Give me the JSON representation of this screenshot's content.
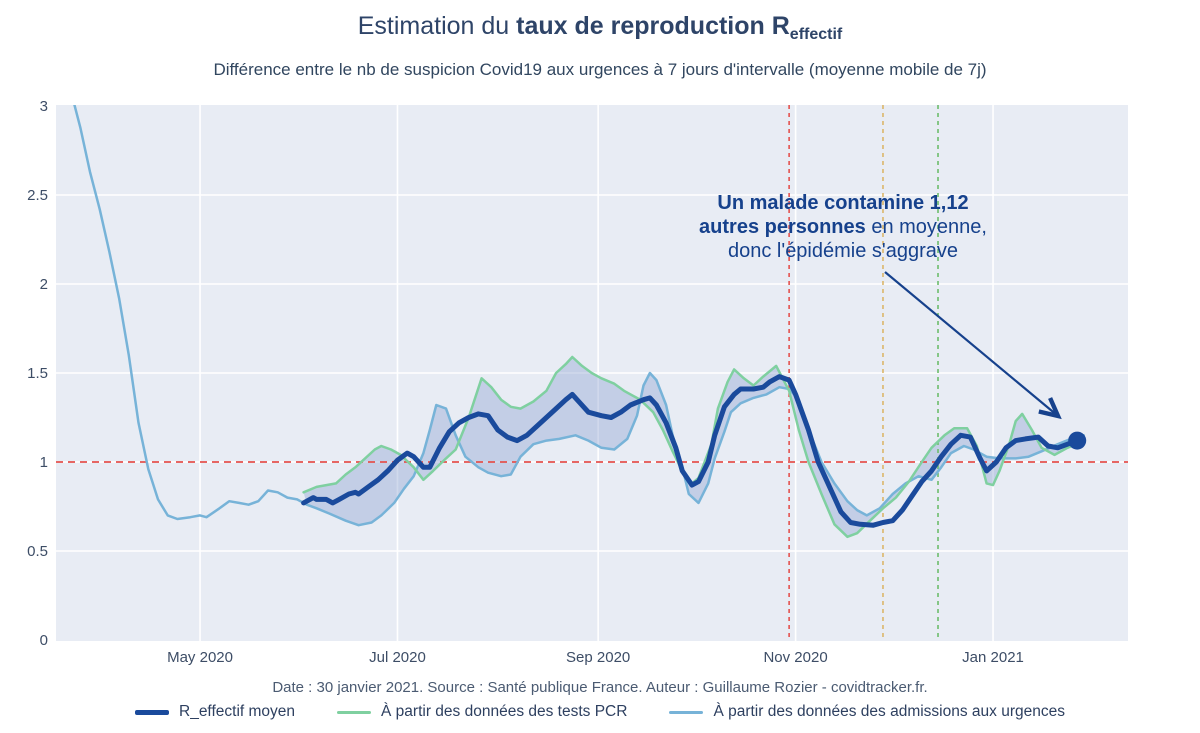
{
  "title": {
    "prefix": "Estimation du ",
    "bold": "taux de reproduction R",
    "sub": "effectif"
  },
  "subtitle": "Différence entre le nb de suspicion Covid19 aux urgences à 7 jours d'intervalle (moyenne mobile de 7j)",
  "annotation": {
    "line1": "Un malade contamine 1,12",
    "line2_bold": "autres personnes",
    "line2_rest": " en moyenne,",
    "line3": "donc l'épidémie s'aggrave"
  },
  "footer": "Date : 30 janvier 2021. Source : Santé publique France. Auteur : Guillaume Rozier - covidtracker.fr.",
  "legend": [
    {
      "label": "R_effectif moyen",
      "color": "#1a4a9c",
      "thick": 5
    },
    {
      "label": "À partir des données des tests PCR",
      "color": "#7fd0a0",
      "thick": 3
    },
    {
      "label": "À partir des données des admissions aux urgences",
      "color": "#77b3d8",
      "thick": 3
    }
  ],
  "colors": {
    "accent_navy": "#16418c",
    "threshold_red": "#e4524e",
    "event_orange": "#dcb66a",
    "event_green": "#6cbc6c",
    "plot_background": "#e8ecf4",
    "gridline": "#ffffff"
  },
  "chart_data": {
    "type": "line",
    "x_unit": "days since 2020-03-01",
    "ylim": [
      0,
      3
    ],
    "grid": true,
    "legend_position": "bottom",
    "plot_bg": "#e8ecf4",
    "band_color": "rgba(151,170,212,0.45)",
    "latest_value_label": "1,12",
    "y_ticks": [
      {
        "v": 0,
        "label": "0"
      },
      {
        "v": 0.5,
        "label": "0.5"
      },
      {
        "v": 1,
        "label": "1"
      },
      {
        "v": 1.5,
        "label": "1.5"
      },
      {
        "v": 2,
        "label": "2"
      },
      {
        "v": 2.5,
        "label": "2.5"
      },
      {
        "v": 3,
        "label": "3"
      }
    ],
    "x_ticks": [
      {
        "day": 61,
        "label": "May 2020"
      },
      {
        "day": 122,
        "label": "Jul 2020"
      },
      {
        "day": 184,
        "label": "Sep 2020"
      },
      {
        "day": 245,
        "label": "Nov 2020"
      },
      {
        "day": 306,
        "label": "Jan 2021"
      }
    ],
    "hline": {
      "value": 1,
      "color": "#e4524e"
    },
    "vlines": [
      {
        "day": 243,
        "color": "#e4524e"
      },
      {
        "day": 272,
        "color": "#dcb66a"
      },
      {
        "day": 289,
        "color": "#6cbc6c"
      }
    ],
    "series": [
      {
        "name": "R_effectif moyen",
        "color": "#1a4a9c",
        "width": 5,
        "points": [
          [
            93,
            0.77
          ],
          [
            96,
            0.8
          ],
          [
            97,
            0.79
          ],
          [
            100,
            0.79
          ],
          [
            102,
            0.77
          ],
          [
            104,
            0.79
          ],
          [
            107,
            0.82
          ],
          [
            109,
            0.83
          ],
          [
            110,
            0.82
          ],
          [
            113,
            0.86
          ],
          [
            116,
            0.9
          ],
          [
            119,
            0.95
          ],
          [
            122,
            1.01
          ],
          [
            125,
            1.05
          ],
          [
            127,
            1.03
          ],
          [
            130,
            0.97
          ],
          [
            132,
            0.97
          ],
          [
            135,
            1.08
          ],
          [
            138,
            1.17
          ],
          [
            141,
            1.22
          ],
          [
            144,
            1.25
          ],
          [
            147,
            1.27
          ],
          [
            150,
            1.26
          ],
          [
            153,
            1.18
          ],
          [
            156,
            1.14
          ],
          [
            159,
            1.12
          ],
          [
            162,
            1.15
          ],
          [
            165,
            1.2
          ],
          [
            168,
            1.25
          ],
          [
            171,
            1.3
          ],
          [
            174,
            1.35
          ],
          [
            176,
            1.38
          ],
          [
            178,
            1.34
          ],
          [
            181,
            1.28
          ],
          [
            185,
            1.26
          ],
          [
            188,
            1.25
          ],
          [
            191,
            1.28
          ],
          [
            194,
            1.32
          ],
          [
            198,
            1.35
          ],
          [
            200,
            1.36
          ],
          [
            202,
            1.32
          ],
          [
            205,
            1.22
          ],
          [
            208,
            1.08
          ],
          [
            210,
            0.95
          ],
          [
            213,
            0.87
          ],
          [
            215,
            0.89
          ],
          [
            218,
            1.0
          ],
          [
            220,
            1.15
          ],
          [
            223,
            1.31
          ],
          [
            226,
            1.38
          ],
          [
            228,
            1.41
          ],
          [
            232,
            1.41
          ],
          [
            235,
            1.42
          ],
          [
            237,
            1.45
          ],
          [
            240,
            1.48
          ],
          [
            243,
            1.46
          ],
          [
            245,
            1.38
          ],
          [
            249,
            1.18
          ],
          [
            252,
            1.0
          ],
          [
            256,
            0.84
          ],
          [
            259,
            0.72
          ],
          [
            262,
            0.66
          ],
          [
            265,
            0.65
          ],
          [
            269,
            0.645
          ],
          [
            272,
            0.66
          ],
          [
            275,
            0.67
          ],
          [
            278,
            0.73
          ],
          [
            281,
            0.81
          ],
          [
            284,
            0.89
          ],
          [
            287,
            0.95
          ],
          [
            290,
            1.03
          ],
          [
            293,
            1.1
          ],
          [
            296,
            1.15
          ],
          [
            299,
            1.14
          ],
          [
            302,
            1.02
          ],
          [
            304,
            0.95
          ],
          [
            307,
            1.0
          ],
          [
            310,
            1.08
          ],
          [
            313,
            1.12
          ],
          [
            316,
            1.13
          ],
          [
            320,
            1.14
          ],
          [
            323,
            1.09
          ],
          [
            326,
            1.08
          ],
          [
            329,
            1.1
          ],
          [
            332,
            1.12
          ]
        ]
      },
      {
        "name": "À partir des données des tests PCR",
        "color": "#7fd0a0",
        "width": 2.5,
        "points": [
          [
            93,
            0.83
          ],
          [
            97,
            0.86
          ],
          [
            100,
            0.87
          ],
          [
            103,
            0.88
          ],
          [
            106,
            0.93
          ],
          [
            109,
            0.97
          ],
          [
            112,
            1.02
          ],
          [
            115,
            1.07
          ],
          [
            117,
            1.09
          ],
          [
            120,
            1.07
          ],
          [
            123,
            1.04
          ],
          [
            127,
            0.97
          ],
          [
            130,
            0.9
          ],
          [
            133,
            0.95
          ],
          [
            137,
            1.02
          ],
          [
            140,
            1.07
          ],
          [
            144,
            1.25
          ],
          [
            148,
            1.47
          ],
          [
            151,
            1.42
          ],
          [
            154,
            1.35
          ],
          [
            157,
            1.31
          ],
          [
            160,
            1.3
          ],
          [
            164,
            1.34
          ],
          [
            168,
            1.4
          ],
          [
            171,
            1.5
          ],
          [
            174,
            1.55
          ],
          [
            176,
            1.59
          ],
          [
            179,
            1.54
          ],
          [
            182,
            1.5
          ],
          [
            185,
            1.47
          ],
          [
            189,
            1.44
          ],
          [
            192,
            1.4
          ],
          [
            197,
            1.35
          ],
          [
            201,
            1.28
          ],
          [
            204,
            1.18
          ],
          [
            207,
            1.06
          ],
          [
            210,
            0.95
          ],
          [
            213,
            0.88
          ],
          [
            215,
            0.91
          ],
          [
            219,
            1.1
          ],
          [
            221,
            1.3
          ],
          [
            224,
            1.45
          ],
          [
            226,
            1.52
          ],
          [
            229,
            1.47
          ],
          [
            232,
            1.43
          ],
          [
            235,
            1.48
          ],
          [
            239,
            1.54
          ],
          [
            243,
            1.4
          ],
          [
            246,
            1.18
          ],
          [
            249,
            1.0
          ],
          [
            253,
            0.82
          ],
          [
            257,
            0.65
          ],
          [
            261,
            0.58
          ],
          [
            264,
            0.6
          ],
          [
            268,
            0.67
          ],
          [
            272,
            0.74
          ],
          [
            276,
            0.8
          ],
          [
            280,
            0.89
          ],
          [
            284,
            1.0
          ],
          [
            287,
            1.08
          ],
          [
            291,
            1.15
          ],
          [
            294,
            1.19
          ],
          [
            298,
            1.19
          ],
          [
            301,
            1.09
          ],
          [
            304,
            0.88
          ],
          [
            306,
            0.87
          ],
          [
            308,
            0.95
          ],
          [
            311,
            1.1
          ],
          [
            313,
            1.23
          ],
          [
            315,
            1.27
          ],
          [
            318,
            1.18
          ],
          [
            321,
            1.08
          ],
          [
            325,
            1.04
          ],
          [
            329,
            1.08
          ],
          [
            333,
            1.11
          ]
        ]
      },
      {
        "name": "À partir des données des admissions aux urgences",
        "color": "#77b3d8",
        "width": 2.5,
        "points": [
          [
            22,
            3.02
          ],
          [
            24,
            2.88
          ],
          [
            27,
            2.63
          ],
          [
            30,
            2.42
          ],
          [
            33,
            2.18
          ],
          [
            36,
            1.92
          ],
          [
            39,
            1.6
          ],
          [
            42,
            1.22
          ],
          [
            45,
            0.96
          ],
          [
            48,
            0.79
          ],
          [
            51,
            0.7
          ],
          [
            54,
            0.68
          ],
          [
            58,
            0.69
          ],
          [
            61,
            0.7
          ],
          [
            63,
            0.69
          ],
          [
            67,
            0.74
          ],
          [
            70,
            0.78
          ],
          [
            73,
            0.77
          ],
          [
            76,
            0.76
          ],
          [
            79,
            0.78
          ],
          [
            82,
            0.84
          ],
          [
            85,
            0.83
          ],
          [
            88,
            0.8
          ],
          [
            91,
            0.79
          ],
          [
            94,
            0.76
          ],
          [
            97,
            0.74
          ],
          [
            101,
            0.71
          ],
          [
            106,
            0.67
          ],
          [
            110,
            0.645
          ],
          [
            114,
            0.66
          ],
          [
            117,
            0.7
          ],
          [
            121,
            0.77
          ],
          [
            124,
            0.85
          ],
          [
            127,
            0.92
          ],
          [
            130,
            1.05
          ],
          [
            132,
            1.18
          ],
          [
            134,
            1.32
          ],
          [
            137,
            1.3
          ],
          [
            140,
            1.15
          ],
          [
            143,
            1.03
          ],
          [
            147,
            0.97
          ],
          [
            150,
            0.94
          ],
          [
            154,
            0.92
          ],
          [
            157,
            0.93
          ],
          [
            160,
            1.03
          ],
          [
            164,
            1.1
          ],
          [
            168,
            1.12
          ],
          [
            172,
            1.13
          ],
          [
            177,
            1.15
          ],
          [
            181,
            1.12
          ],
          [
            185,
            1.08
          ],
          [
            189,
            1.07
          ],
          [
            193,
            1.13
          ],
          [
            196,
            1.26
          ],
          [
            198,
            1.43
          ],
          [
            200,
            1.5
          ],
          [
            202,
            1.46
          ],
          [
            205,
            1.32
          ],
          [
            207,
            1.15
          ],
          [
            210,
            0.97
          ],
          [
            212,
            0.82
          ],
          [
            215,
            0.77
          ],
          [
            218,
            0.88
          ],
          [
            220,
            1.02
          ],
          [
            223,
            1.17
          ],
          [
            225,
            1.28
          ],
          [
            228,
            1.33
          ],
          [
            232,
            1.36
          ],
          [
            236,
            1.38
          ],
          [
            240,
            1.42
          ],
          [
            243,
            1.41
          ],
          [
            246,
            1.35
          ],
          [
            249,
            1.18
          ],
          [
            253,
            1.0
          ],
          [
            257,
            0.88
          ],
          [
            261,
            0.78
          ],
          [
            264,
            0.73
          ],
          [
            267,
            0.7
          ],
          [
            271,
            0.74
          ],
          [
            275,
            0.82
          ],
          [
            279,
            0.88
          ],
          [
            283,
            0.92
          ],
          [
            287,
            0.9
          ],
          [
            290,
            0.97
          ],
          [
            293,
            1.05
          ],
          [
            297,
            1.09
          ],
          [
            300,
            1.07
          ],
          [
            304,
            1.03
          ],
          [
            308,
            1.02
          ],
          [
            313,
            1.02
          ],
          [
            317,
            1.03
          ],
          [
            321,
            1.06
          ],
          [
            326,
            1.1
          ],
          [
            330,
            1.13
          ],
          [
            334,
            1.15
          ]
        ]
      }
    ]
  }
}
